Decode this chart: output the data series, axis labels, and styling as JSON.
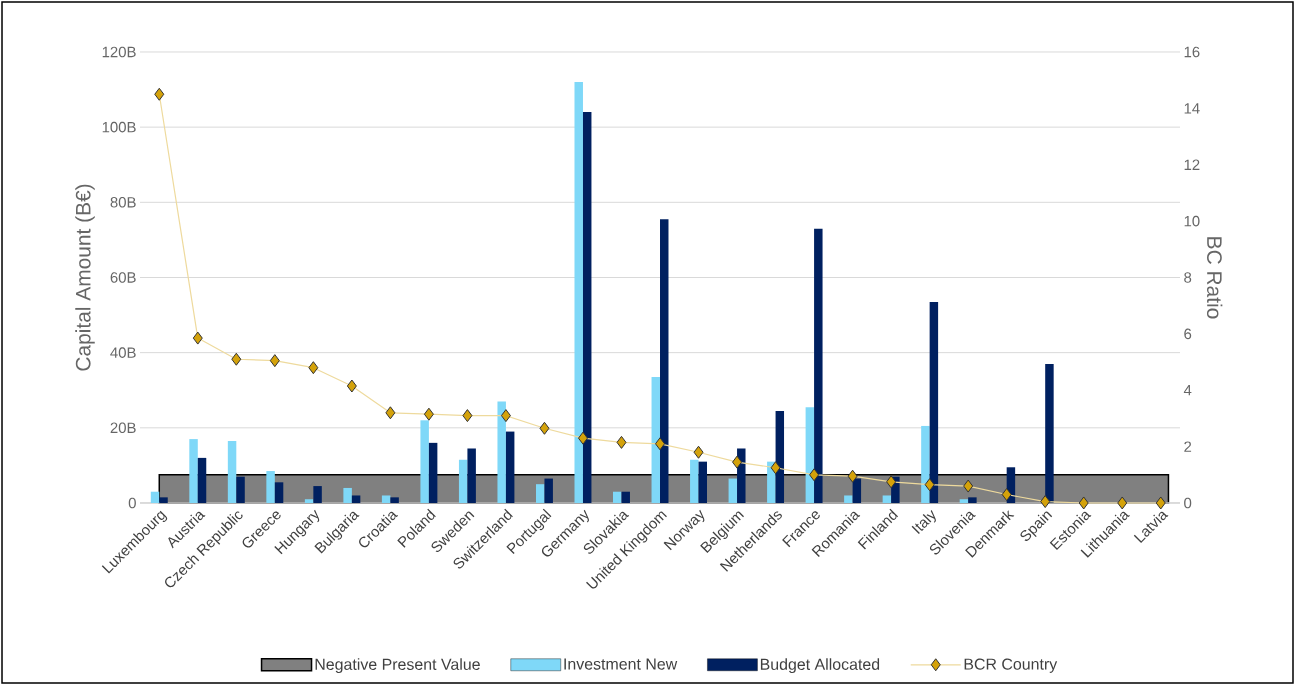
{
  "chart_data": {
    "type": "bar",
    "categories": [
      "Luxembourg",
      "Austria",
      "Czech Republic",
      "Greece",
      "Hungary",
      "Bulgaria",
      "Croatia",
      "Poland",
      "Sweden",
      "Switzerland",
      "Portugal",
      "Germany",
      "Slovakia",
      "United Kingdom",
      "Norway",
      "Belgium",
      "Netherlands",
      "France",
      "Romania",
      "Finland",
      "Italy",
      "Slovenia",
      "Denmark",
      "Spain",
      "Estonia",
      "Lithuania",
      "Latvia"
    ],
    "ylabel": "Capital Amount (B€)",
    "y2label": "BC Ratio",
    "ylim": [
      0,
      120
    ],
    "yticks": [
      0,
      {
        "value": 20,
        "label": "20B"
      },
      {
        "value": 40,
        "label": "40B"
      },
      {
        "value": 60,
        "label": "60B"
      },
      {
        "value": 80,
        "label": "80B"
      },
      {
        "value": 100,
        "label": "100B"
      },
      {
        "value": 120,
        "label": "120B"
      }
    ],
    "y2lim": [
      0,
      16
    ],
    "y2ticks": [
      0,
      2,
      4,
      6,
      8,
      10,
      12,
      14,
      16
    ],
    "grid": "y",
    "legend": "bottom",
    "bands": [
      {
        "axis": "y2",
        "from": 0,
        "to": 1,
        "label": "Negative Present Value",
        "color": "#808080"
      }
    ],
    "series": [
      {
        "name": "Investment New",
        "color": "#7fd8f8",
        "values": [
          3,
          17,
          16.5,
          8.5,
          1,
          4,
          2,
          22,
          11.5,
          27,
          5,
          112,
          3,
          33.5,
          11.5,
          6.5,
          11,
          25.5,
          2,
          2,
          20.5,
          1,
          0,
          0,
          0,
          0,
          0
        ]
      },
      {
        "name": "Budget Allocated",
        "color": "#002060",
        "values": [
          1.5,
          12,
          7,
          5.5,
          4.5,
          2,
          1.5,
          16,
          14.5,
          19,
          6.5,
          104,
          3,
          75.5,
          11,
          14.5,
          24.5,
          73,
          6.5,
          7,
          53.5,
          1.5,
          9.5,
          37,
          null,
          null,
          null
        ]
      },
      {
        "name": "BCR Country",
        "type": "line",
        "axis": "y2",
        "marker": "diamond",
        "color": "#d4a20a",
        "values": [
          14.5,
          5.85,
          5.1,
          5.05,
          4.8,
          4.15,
          3.2,
          3.15,
          3.1,
          3.1,
          2.65,
          2.3,
          2.15,
          2.1,
          1.8,
          1.45,
          1.25,
          1.0,
          0.95,
          0.75,
          0.65,
          0.6,
          0.3,
          0.05,
          0,
          0,
          0
        ]
      }
    ]
  }
}
